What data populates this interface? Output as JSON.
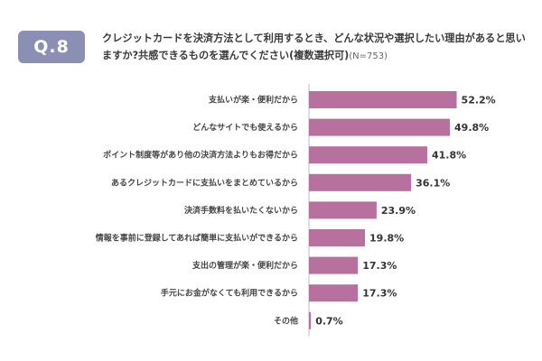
{
  "header": {
    "badge": "Q.8",
    "question": "クレジットカードを決済方法として利用するとき、どんな状況や選択したい理由があると思いますか?共感できるものを選んでください(複数選択可)",
    "sample": "(N=753)"
  },
  "colors": {
    "bar": "#b8719e",
    "axis": "#bdbdbd",
    "badge": "#8b8fb3"
  },
  "chart_data": {
    "type": "bar",
    "orientation": "horizontal",
    "unit": "%",
    "xlim": [
      0,
      60
    ],
    "categories": [
      "支払いが楽・便利だから",
      "どんなサイトでも使えるから",
      "ポイント制度等があり他の決済方法よりもお得だから",
      "あるクレジットカードに支払いをまとめているから",
      "決済手数料を払いたくないから",
      "情報を事前に登録してあれば簡単に支払いができるから",
      "支出の管理が楽・便利だから",
      "手元にお金がなくても利用できるから",
      "その他"
    ],
    "values": [
      52.2,
      49.8,
      41.8,
      36.1,
      23.9,
      19.8,
      17.3,
      17.3,
      0.7
    ],
    "value_labels": [
      "52.2%",
      "49.8%",
      "41.8%",
      "36.1%",
      "23.9%",
      "19.8%",
      "17.3%",
      "17.3%",
      "0.7%"
    ]
  }
}
